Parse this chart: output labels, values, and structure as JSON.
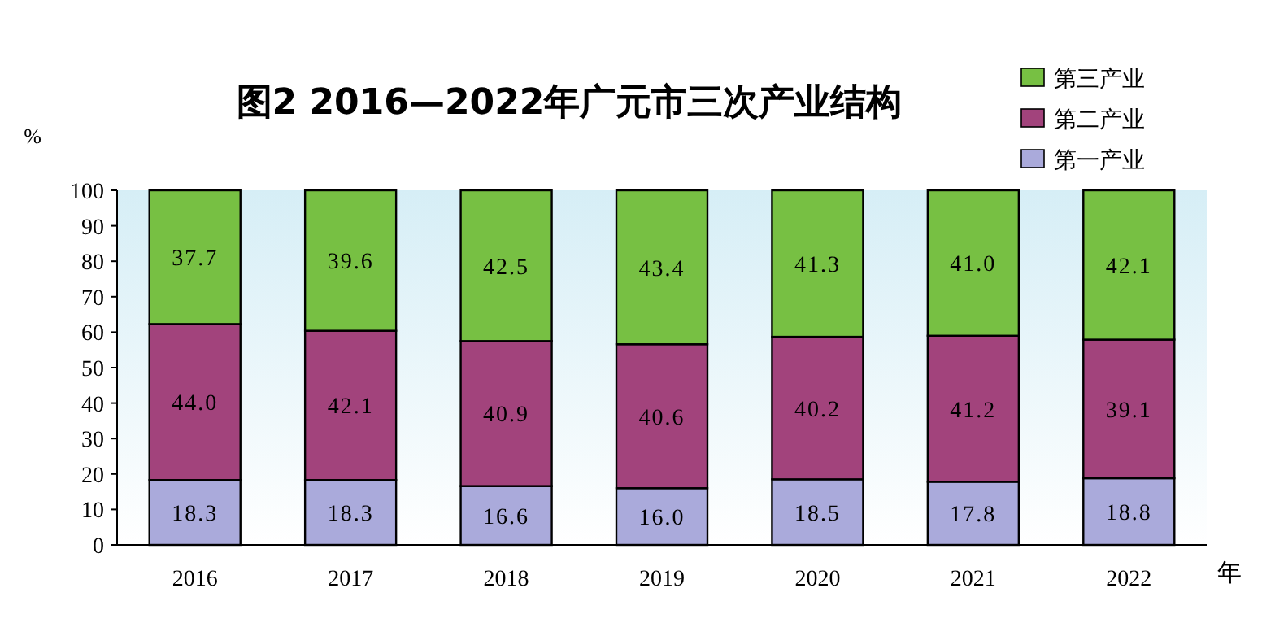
{
  "chart_data": {
    "type": "bar",
    "stacked": true,
    "title": "图2 2016—2022年广元市三次产业结构",
    "ylabel": "%",
    "xlabel": "年",
    "categories": [
      "2016",
      "2017",
      "2018",
      "2019",
      "2020",
      "2021",
      "2022"
    ],
    "series": [
      {
        "name": "第一产业",
        "color": "#aaaadb",
        "values": [
          18.3,
          18.3,
          16.6,
          16.0,
          18.5,
          17.8,
          18.8
        ],
        "value_labels": [
          "18.3",
          "18.3",
          "16.6",
          "16.0",
          "18.5",
          "17.8",
          "18.8"
        ]
      },
      {
        "name": "第二产业",
        "color": "#a2437c",
        "values": [
          44.0,
          42.1,
          40.9,
          40.6,
          40.2,
          41.2,
          39.1
        ],
        "value_labels": [
          "44.0",
          "42.1",
          "40.9",
          "40.6",
          "40.2",
          "41.2",
          "39.1"
        ]
      },
      {
        "name": "第三产业",
        "color": "#77c043",
        "values": [
          37.7,
          39.6,
          42.5,
          43.4,
          41.3,
          41.0,
          42.1
        ],
        "value_labels": [
          "37.7",
          "39.6",
          "42.5",
          "43.4",
          "41.3",
          "41.0",
          "42.1"
        ]
      }
    ],
    "ylim": [
      0,
      100
    ],
    "yticks": [
      0,
      10,
      20,
      30,
      40,
      50,
      60,
      70,
      80,
      90,
      100
    ],
    "legend": "top right"
  }
}
